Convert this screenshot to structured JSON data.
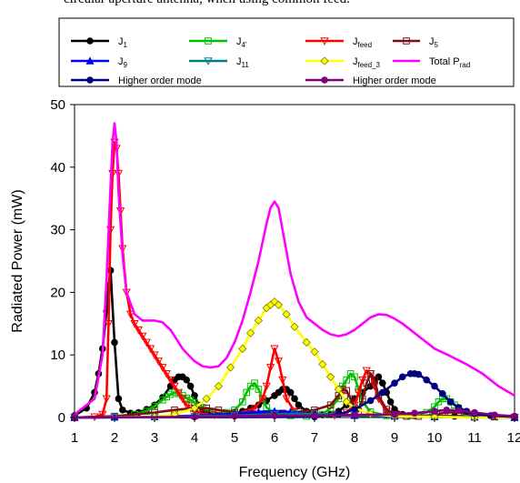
{
  "caption": "circular aperture antenna, when using common feed.",
  "chart_data": {
    "type": "line",
    "title": "",
    "xlabel": "Frequency (GHz)",
    "ylabel": "Radiated Power (mW)",
    "xlim": [
      1,
      12
    ],
    "ylim": [
      0,
      50
    ],
    "xticks": [
      "1",
      "2",
      "3",
      "4",
      "5",
      "6",
      "7",
      "8",
      "9",
      "10",
      "11",
      "12"
    ],
    "yticks": [
      "0",
      "10",
      "20",
      "30",
      "40",
      "50"
    ],
    "grid": false,
    "legend_position": "top",
    "series": [
      {
        "name": "J1",
        "label_base": "J",
        "label_sub": "1",
        "color": "#000000",
        "marker": "circle",
        "x": [
          1.0,
          1.3,
          1.5,
          1.6,
          1.7,
          1.8,
          1.85,
          1.9,
          2.0,
          2.1,
          2.2,
          2.4,
          2.6,
          2.8,
          3.0,
          3.2,
          3.4,
          3.5,
          3.6,
          3.7,
          3.8,
          3.9,
          4.0,
          4.1,
          4.2,
          4.4,
          4.6,
          4.8,
          5.0,
          5.2,
          5.4,
          5.6,
          5.8,
          6.0,
          6.1,
          6.2,
          6.3,
          6.4,
          6.5,
          6.6,
          6.8,
          7.0,
          7.2,
          7.4,
          7.6,
          7.8,
          8.0,
          8.2,
          8.4,
          8.5,
          8.6,
          8.7,
          8.8,
          8.9,
          9.0,
          9.2,
          9.5,
          10.0,
          10.5,
          11.0,
          11.5,
          12.0
        ],
        "y": [
          0.3,
          1.5,
          4,
          7,
          11,
          17,
          21,
          23.5,
          12,
          3,
          1.2,
          0.7,
          0.8,
          1.3,
          2,
          3.2,
          5,
          6,
          6.5,
          6.5,
          6,
          5,
          3.5,
          2,
          1.2,
          0.6,
          0.4,
          0.4,
          0.6,
          1,
          1.5,
          2,
          2.7,
          3.5,
          4,
          4.5,
          4.5,
          4,
          3,
          2,
          1,
          0.5,
          0.4,
          0.5,
          1,
          2,
          3,
          4,
          5,
          6,
          6.5,
          5.5,
          4,
          2.5,
          1.3,
          0.5,
          0.3,
          0.2,
          0.2,
          0.2,
          0.2,
          0.2
        ]
      },
      {
        "name": "J4'",
        "label_base": "J",
        "label_sub": "4'",
        "color": "#00c000",
        "marker": "square",
        "x": [
          1.0,
          2.0,
          2.5,
          2.8,
          3.0,
          3.2,
          3.3,
          3.4,
          3.5,
          3.6,
          3.7,
          3.8,
          3.9,
          4.0,
          4.2,
          4.4,
          4.6,
          4.8,
          5.0,
          5.2,
          5.3,
          5.4,
          5.5,
          5.6,
          5.7,
          5.8,
          6.0,
          6.4,
          6.8,
          7.2,
          7.4,
          7.6,
          7.7,
          7.8,
          7.9,
          8.0,
          8.1,
          8.2,
          8.4,
          8.8,
          9.4,
          9.8,
          10.0,
          10.1,
          10.2,
          10.3,
          10.4,
          10.5,
          10.6,
          10.8,
          11.0,
          11.5,
          12.0
        ],
        "y": [
          0,
          0.1,
          0.5,
          1,
          1.8,
          2.8,
          3.3,
          3.7,
          4,
          3.8,
          3.5,
          3.1,
          2.8,
          2.4,
          1.6,
          1,
          0.7,
          0.8,
          1.2,
          2.5,
          4,
          5,
          5.5,
          4.5,
          3,
          1.6,
          0.7,
          0.3,
          0.2,
          0.5,
          1.5,
          3,
          5,
          6,
          7,
          6.5,
          4.5,
          2.5,
          0.9,
          0.3,
          0.3,
          0.8,
          1.7,
          2.5,
          3,
          3,
          2.5,
          2,
          1.5,
          0.8,
          0.4,
          0.1,
          0.05
        ]
      },
      {
        "name": "Jfeed",
        "label_base": "J",
        "label_sub": "feed",
        "color": "#ff0000",
        "marker": "tri-down",
        "x": [
          1.0,
          1.5,
          1.7,
          1.8,
          1.85,
          1.9,
          1.95,
          2.0,
          2.05,
          2.1,
          2.15,
          2.2,
          2.3,
          2.4,
          2.5,
          2.6,
          2.7,
          2.8,
          2.9,
          3.0,
          3.1,
          3.2,
          3.3,
          3.4,
          3.5,
          3.6,
          3.7,
          3.8,
          3.9,
          4.0,
          4.2,
          4.5,
          5.0,
          5.5,
          5.7,
          5.8,
          5.9,
          6.0,
          6.1,
          6.2,
          6.3,
          6.5,
          7.0,
          7.5,
          7.8,
          8.0,
          8.1,
          8.2,
          8.3,
          8.4,
          8.5,
          8.6,
          8.8,
          9.5,
          10.0,
          11.0,
          12.0
        ],
        "y": [
          0,
          0.1,
          0.5,
          3,
          15,
          30,
          39,
          44,
          43,
          39,
          33,
          27,
          20,
          16.5,
          15,
          14,
          13,
          12,
          11,
          10,
          9,
          8,
          7,
          6,
          5,
          4,
          3,
          2,
          1.5,
          1,
          0.6,
          0.4,
          0.5,
          1.5,
          3,
          5,
          8,
          11,
          9,
          6,
          3,
          1,
          0.3,
          0.3,
          0.8,
          2,
          4,
          6,
          7.5,
          7,
          5,
          3,
          1,
          0.3,
          0.1,
          0.05,
          0
        ]
      },
      {
        "name": "J5",
        "label_base": "J",
        "label_sub": "5",
        "color": "#7f1010",
        "marker": "square",
        "x": [
          1.0,
          2.0,
          3.0,
          3.5,
          4.0,
          4.3,
          4.6,
          5.0,
          5.4,
          5.8,
          6.2,
          6.6,
          7.0,
          7.4,
          7.6,
          7.7,
          7.8,
          7.9,
          8.0,
          8.1,
          8.2,
          8.3,
          8.4,
          8.5,
          8.6,
          8.8,
          9.0,
          9.3,
          9.6,
          10.0,
          10.2,
          10.4,
          10.6,
          10.8,
          11.0,
          11.5,
          12.0
        ],
        "y": [
          0,
          0.2,
          0.8,
          1.2,
          1.5,
          1.5,
          1.2,
          0.8,
          0.6,
          0.6,
          0.7,
          0.9,
          1.2,
          2,
          3.5,
          4.5,
          4.3,
          3,
          1.5,
          1,
          3,
          5.5,
          7,
          6,
          3.5,
          1.3,
          0.5,
          0.2,
          0.2,
          0.4,
          0.7,
          0.8,
          0.8,
          0.6,
          0.4,
          0.1,
          0
        ]
      },
      {
        "name": "J9",
        "label_base": "J",
        "label_sub": "9",
        "color": "#0000ff",
        "marker": "tri-up",
        "x": [
          1.0,
          2.0,
          3.0,
          4.0,
          5.0,
          5.6,
          6.0,
          6.4,
          7.0,
          8.0,
          9.0,
          10.0,
          11.0,
          12.0
        ],
        "y": [
          0,
          0.05,
          0.1,
          0.3,
          0.6,
          0.9,
          1,
          0.9,
          0.5,
          0.3,
          0.2,
          0.1,
          0.05,
          0
        ]
      },
      {
        "name": "J11",
        "label_base": "J",
        "label_sub": "11",
        "color": "#008080",
        "marker": "tri-down",
        "x": [
          1.0,
          2.0,
          3.0,
          4.0,
          5.0,
          6.0,
          6.5,
          7.0,
          7.5,
          8.0,
          9.0,
          10.0,
          11.0,
          12.0
        ],
        "y": [
          0,
          0.05,
          0.1,
          0.2,
          0.3,
          0.5,
          0.6,
          0.6,
          0.5,
          0.3,
          0.2,
          0.1,
          0.05,
          0
        ]
      },
      {
        "name": "Jfeed_3",
        "label_base": "J",
        "label_sub": "feed_3",
        "color": "#ffff00",
        "marker": "diamond",
        "x": [
          1.0,
          3.0,
          3.5,
          4.0,
          4.3,
          4.6,
          4.9,
          5.2,
          5.4,
          5.6,
          5.8,
          5.9,
          6.0,
          6.1,
          6.3,
          6.5,
          6.8,
          7.0,
          7.2,
          7.4,
          7.6,
          7.8,
          8.0,
          8.4,
          9.0,
          10.0,
          11.0,
          12.0
        ],
        "y": [
          0,
          0.1,
          0.5,
          1.5,
          3,
          5,
          8,
          11,
          13.5,
          15.5,
          17.5,
          18,
          18.5,
          18,
          16.5,
          14.5,
          12,
          10.5,
          8.5,
          6.5,
          4.5,
          2.5,
          1.5,
          0.6,
          0.2,
          0.1,
          0,
          0
        ]
      },
      {
        "name": "Total Prad",
        "label_base": "Total P",
        "label_sub": "rad",
        "color": "#ff00ff",
        "marker": "none",
        "x": [
          1.0,
          1.5,
          1.7,
          1.8,
          1.9,
          1.95,
          2.0,
          2.05,
          2.1,
          2.2,
          2.3,
          2.5,
          2.7,
          3.0,
          3.2,
          3.4,
          3.5,
          3.6,
          3.7,
          3.8,
          4.0,
          4.2,
          4.4,
          4.6,
          4.8,
          5.0,
          5.2,
          5.4,
          5.6,
          5.8,
          5.9,
          6.0,
          6.1,
          6.2,
          6.4,
          6.6,
          6.8,
          7.0,
          7.2,
          7.4,
          7.6,
          7.8,
          8.0,
          8.2,
          8.4,
          8.6,
          8.8,
          9.0,
          9.2,
          9.4,
          9.6,
          9.8,
          10.0,
          10.4,
          10.8,
          11.2,
          11.6,
          12.0
        ],
        "y": [
          0.5,
          3,
          10,
          22,
          37,
          44,
          47,
          44,
          36,
          26,
          20,
          16.5,
          15.5,
          15.5,
          15.2,
          14,
          13,
          12,
          11,
          10.3,
          9,
          8.2,
          8,
          8.2,
          9.5,
          12,
          15.5,
          20,
          25,
          31,
          33.5,
          34.5,
          33.5,
          30,
          23,
          18.5,
          16,
          15,
          14,
          13.3,
          13,
          13.3,
          14,
          15,
          16,
          16.5,
          16.4,
          15.8,
          15,
          14,
          13,
          12,
          11,
          9.8,
          8.5,
          7,
          5,
          3.5
        ]
      },
      {
        "name": "Higher order mode",
        "label_base": "Higher order mode",
        "label_sub": "",
        "color": "#000080",
        "marker": "circle",
        "x": [
          1.0,
          7.0,
          7.6,
          8.0,
          8.4,
          8.7,
          9.0,
          9.2,
          9.4,
          9.5,
          9.6,
          9.8,
          10.0,
          10.2,
          10.4,
          10.6,
          10.8,
          11.0,
          11.4,
          12.0
        ],
        "y": [
          0,
          0.1,
          0.5,
          1.3,
          2.7,
          4,
          5.5,
          6.5,
          7,
          7,
          6.9,
          6,
          5,
          3.8,
          2.5,
          1.6,
          1,
          0.6,
          0.3,
          0.1
        ]
      },
      {
        "name": "Higher order mode",
        "label_base": "Higher order mode",
        "label_sub": "",
        "color": "#800080",
        "marker": "circle",
        "x": [
          1.0,
          4.0,
          5.0,
          6.0,
          7.0,
          8.0,
          9.0,
          9.5,
          10.0,
          10.3,
          10.6,
          11.0,
          11.5,
          12.0
        ],
        "y": [
          0,
          0.1,
          0.2,
          0.3,
          0.3,
          0.4,
          0.5,
          0.7,
          1,
          1.2,
          1.1,
          0.8,
          0.4,
          0.2
        ]
      }
    ]
  }
}
